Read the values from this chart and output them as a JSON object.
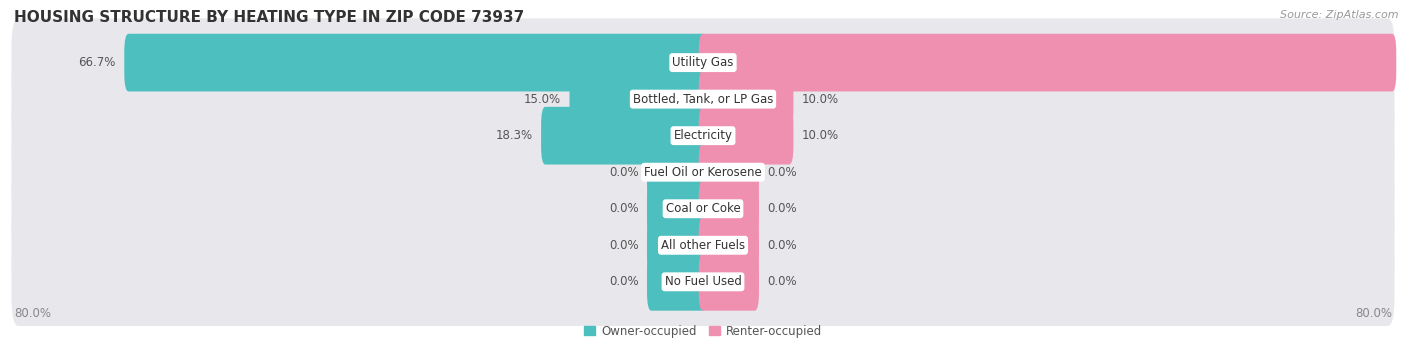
{
  "title": "HOUSING STRUCTURE BY HEATING TYPE IN ZIP CODE 73937",
  "source": "Source: ZipAtlas.com",
  "categories": [
    "Utility Gas",
    "Bottled, Tank, or LP Gas",
    "Electricity",
    "Fuel Oil or Kerosene",
    "Coal or Coke",
    "All other Fuels",
    "No Fuel Used"
  ],
  "owner_values": [
    66.7,
    15.0,
    18.3,
    0.0,
    0.0,
    0.0,
    0.0
  ],
  "renter_values": [
    80.0,
    10.0,
    10.0,
    0.0,
    0.0,
    0.0,
    0.0
  ],
  "owner_color": "#4DBFBF",
  "renter_color": "#F090B0",
  "axis_min": -80.0,
  "axis_max": 80.0,
  "zero_bar_width": 6.0,
  "title_fontsize": 11,
  "source_fontsize": 8,
  "label_fontsize": 8.5,
  "category_fontsize": 8.5
}
